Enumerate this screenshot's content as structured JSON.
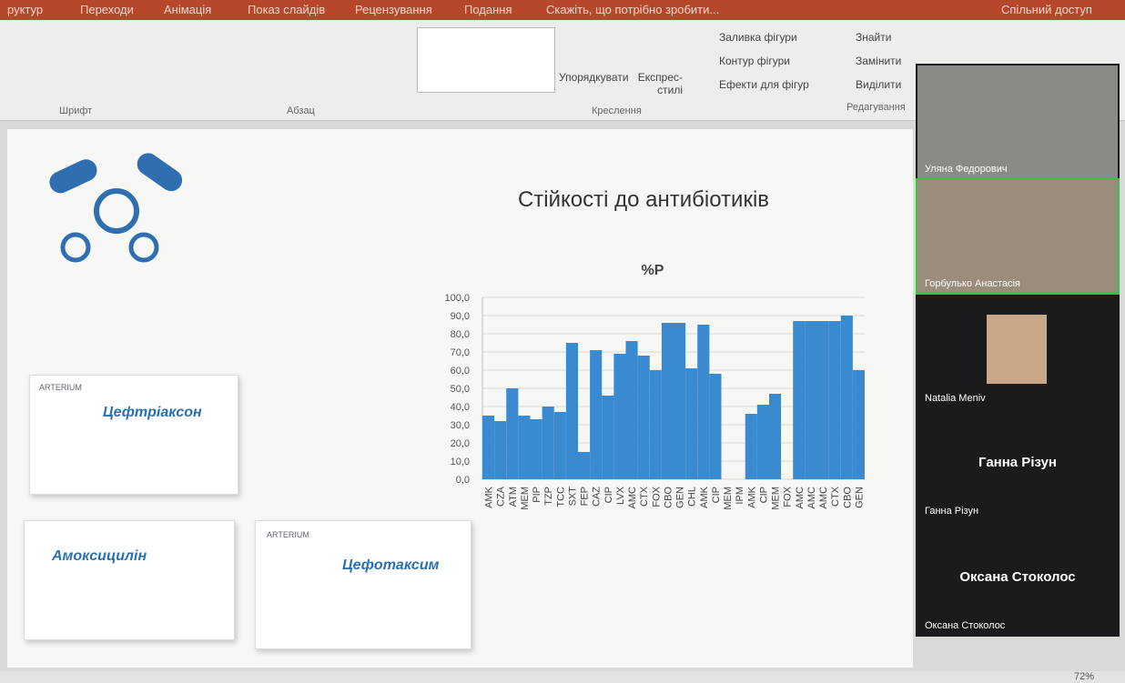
{
  "menu": [
    "руктур",
    "Переходи",
    "Анімація",
    "Показ слайдів",
    "Рецензування",
    "Подання",
    "Скажіть, що потрібно зробити...",
    "Спільний доступ"
  ],
  "ribbon": {
    "groups": [
      "Шрифт",
      "Абзац",
      "Креслення",
      "Редагування"
    ],
    "buttons": [
      "Упорядкувати",
      "Експрес-стилі",
      "Заливка фігури",
      "Контур фігури",
      "Ефекти для фігур",
      "Знайти",
      "Замінити",
      "Виділити"
    ]
  },
  "slide": {
    "drugs": [
      "Цефтріаксон",
      "Амоксицилін",
      "Цефотаксим"
    ],
    "maker": "ARTERIUM"
  },
  "chart_data": {
    "type": "bar",
    "title": "Стійкості до антибіотиків",
    "subtitle": "%P",
    "categories": [
      "AMK",
      "CZA",
      "ATM",
      "MEM",
      "PIP",
      "TZP",
      "TCC",
      "SXT",
      "FEP",
      "CAZ",
      "CIP",
      "LVX",
      "AMC",
      "CTX",
      "FOX",
      "CBO",
      "GEN",
      "CHL",
      "AMK",
      "CIP",
      "MEM",
      "IPM",
      "AMK",
      "CIP",
      "MEM",
      "FOX",
      "AMC",
      "AMC",
      "AMC",
      "CTX",
      "CBO",
      "GEN"
    ],
    "values": [
      35,
      32,
      50,
      35,
      33,
      40,
      37,
      75,
      15,
      71,
      46,
      69,
      76,
      68,
      60,
      86,
      86,
      61,
      85,
      58,
      null,
      null,
      36,
      41,
      47,
      null,
      87,
      87,
      87,
      87,
      90,
      60
    ],
    "color": "#3a8ad0",
    "ylim": [
      0,
      100
    ],
    "yticks": [
      {
        "value": 0,
        "label": "0,0"
      },
      {
        "value": 10,
        "label": "10,0"
      },
      {
        "value": 20,
        "label": "20,0"
      },
      {
        "value": 30,
        "label": "30,0"
      },
      {
        "value": 40,
        "label": "40,0"
      },
      {
        "value": 50,
        "label": "50,0"
      },
      {
        "value": 60,
        "label": "60,0"
      },
      {
        "value": 70,
        "label": "70,0"
      },
      {
        "value": 80,
        "label": "80,0"
      },
      {
        "value": 90,
        "label": "90,0"
      },
      {
        "value": 100,
        "label": "100,0"
      }
    ],
    "grid": true
  },
  "participants": [
    {
      "name": "Уляна Федорович"
    },
    {
      "name": "Горбулько Анастасія"
    },
    {
      "name": "Natalia Meniv"
    },
    {
      "name": "Ганна Різун",
      "display": "Ганна Різун"
    },
    {
      "name": "Оксана Стоколос",
      "display": "Оксана Стоколос"
    }
  ],
  "status": {
    "zoom": "72%"
  }
}
